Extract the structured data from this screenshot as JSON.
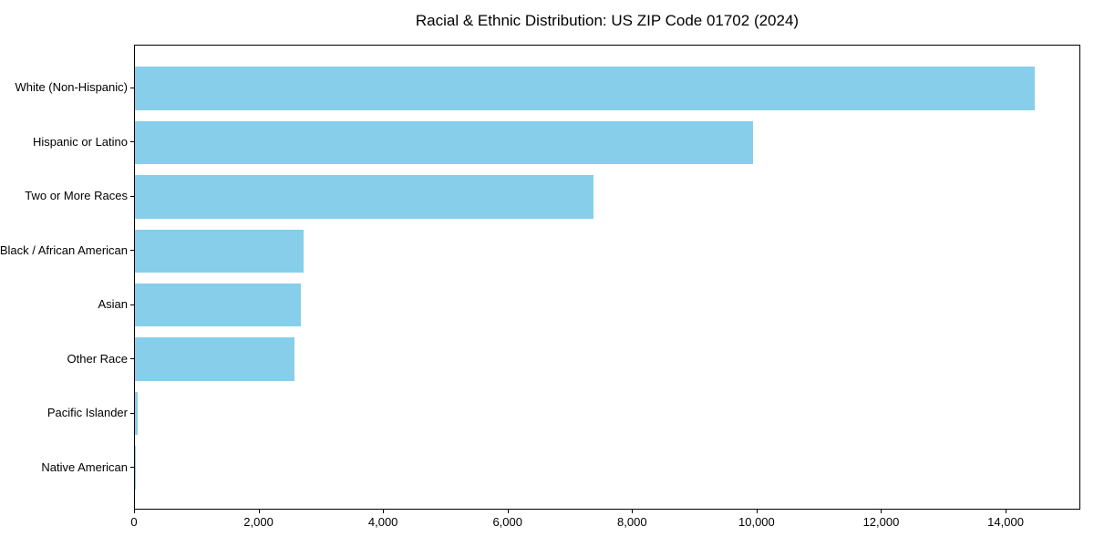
{
  "title": "Racial & Ethnic Distribution: US ZIP Code 01702 (2024)",
  "chart_data": {
    "type": "bar",
    "orientation": "horizontal",
    "title": "Racial & Ethnic Distribution: US ZIP Code 01702 (2024)",
    "xlabel": "",
    "ylabel": "",
    "categories": [
      "White (Non-Hispanic)",
      "Hispanic or Latino",
      "Two or More Races",
      "Black / African American",
      "Asian",
      "Other Race",
      "Pacific Islander",
      "Native American"
    ],
    "values": [
      14450,
      9930,
      7370,
      2710,
      2660,
      2560,
      40,
      10
    ],
    "x_ticks": [
      0,
      2000,
      4000,
      6000,
      8000,
      10000,
      12000,
      14000
    ],
    "x_tick_labels": [
      "0",
      "2,000",
      "4,000",
      "6,000",
      "8,000",
      "10,000",
      "12,000",
      "14,000"
    ],
    "xlim": [
      0,
      15200
    ],
    "grid": false,
    "legend": null,
    "bar_color": "#87CEEB",
    "axis_color": "#000000",
    "background_color": "#ffffff"
  }
}
